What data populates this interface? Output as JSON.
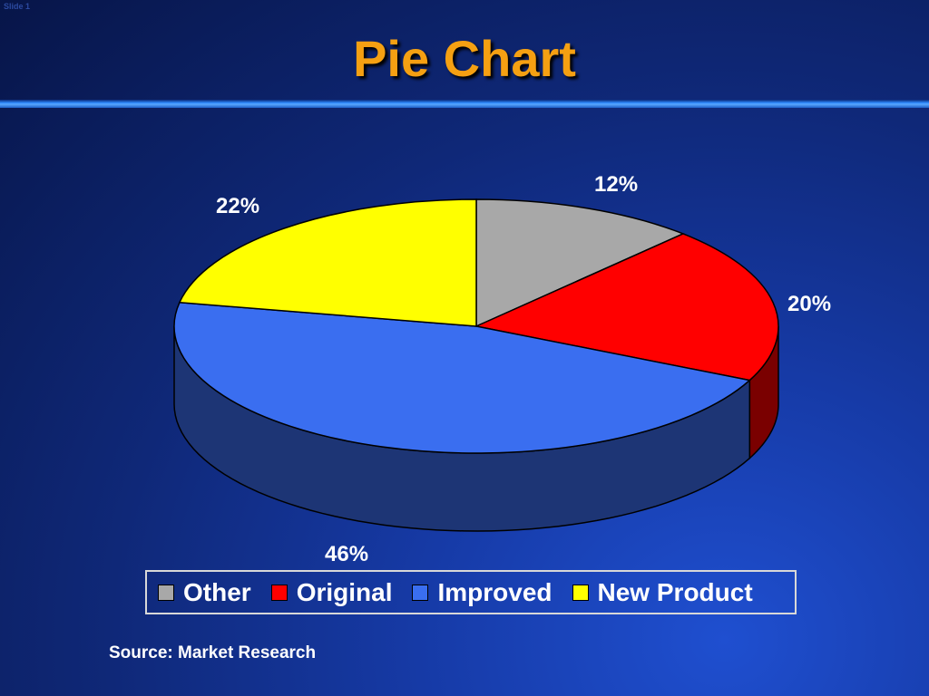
{
  "slide": {
    "number_label": "Slide 1"
  },
  "header": {
    "title": "Pie Chart"
  },
  "chart_data": {
    "type": "pie",
    "title": "Pie Chart",
    "slices": [
      {
        "name": "Other",
        "value": 12,
        "label": "12%",
        "color": "#a8a8a8",
        "side": "#5a5a5a"
      },
      {
        "name": "Original",
        "value": 20,
        "label": "20%",
        "color": "#ff0000",
        "side": "#7a0000"
      },
      {
        "name": "Improved",
        "value": 46,
        "label": "46%",
        "color": "#3a6ef0",
        "side": "#1d3575"
      },
      {
        "name": "New Product",
        "value": 22,
        "label": "22%",
        "color": "#ffff00",
        "side": "#8a8a00"
      }
    ],
    "three_d": true,
    "legend_position": "bottom"
  },
  "footer": {
    "source": "Source: Market Research"
  }
}
